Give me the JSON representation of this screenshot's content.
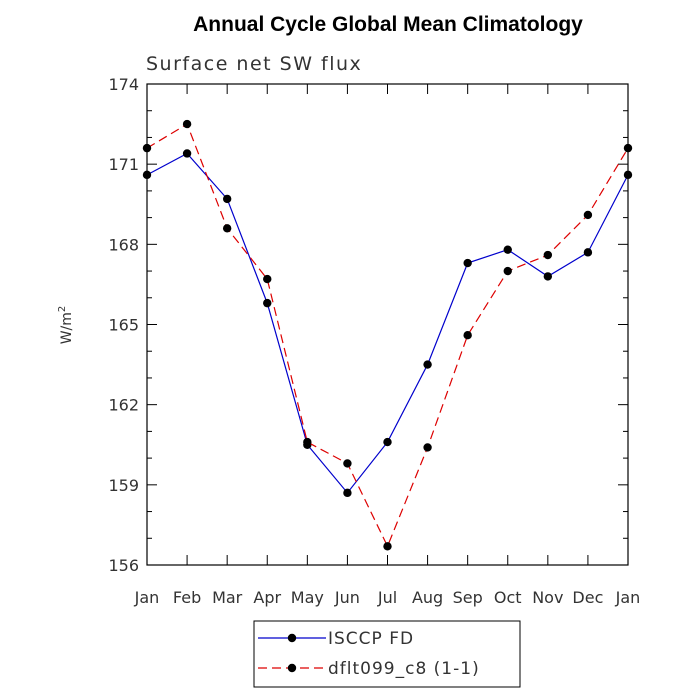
{
  "chart_data": {
    "type": "line",
    "title": "Annual Cycle Global Mean Climatology",
    "subtitle": "Surface net SW flux",
    "ylabel": "W/m",
    "ylabel_superscript": "2",
    "xlabel": "",
    "categories": [
      "Jan",
      "Feb",
      "Mar",
      "Apr",
      "May",
      "Jun",
      "Jul",
      "Aug",
      "Sep",
      "Oct",
      "Nov",
      "Dec",
      "Jan"
    ],
    "ylim": [
      156,
      174
    ],
    "yticks": [
      156,
      159,
      162,
      165,
      168,
      171,
      174
    ],
    "grid": false,
    "legend_position": "bottom",
    "series": [
      {
        "name": "ISCCP FD",
        "color": "#0000cc",
        "dash": "solid",
        "marker": "filled-circle",
        "values": [
          170.6,
          171.4,
          169.7,
          165.8,
          160.5,
          158.7,
          160.6,
          163.5,
          167.3,
          167.8,
          166.8,
          167.7,
          170.6
        ]
      },
      {
        "name": "dflt099_c8 (1-1)",
        "color": "#dd0000",
        "dash": "dashed",
        "marker": "filled-circle",
        "values": [
          171.6,
          172.5,
          168.6,
          166.7,
          160.6,
          159.8,
          156.7,
          160.4,
          164.6,
          167.0,
          167.6,
          169.1,
          171.6
        ]
      }
    ]
  }
}
